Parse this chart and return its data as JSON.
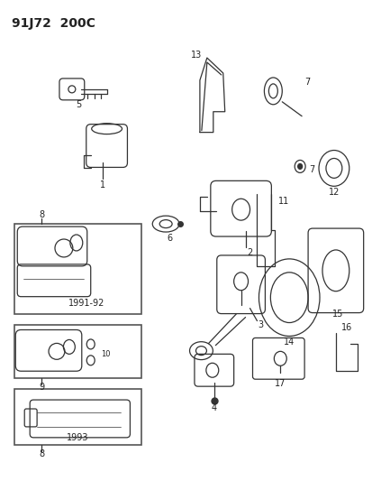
{
  "title": "91J72  200C",
  "bg_color": "#ffffff",
  "line_color": "#333333",
  "text_color": "#222222",
  "font_size_title": 10,
  "font_size_labels": 7,
  "fig_width": 4.14,
  "fig_height": 5.33,
  "dpi": 100
}
